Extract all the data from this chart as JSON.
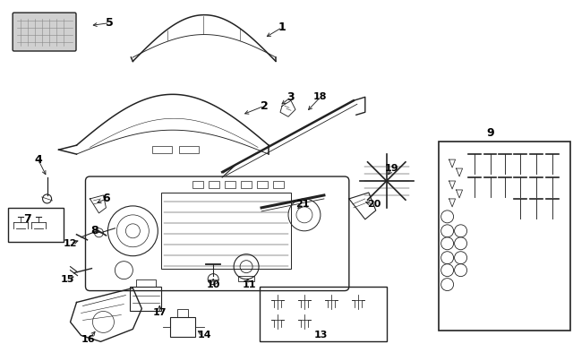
{
  "bg_color": "#ffffff",
  "line_color": "#222222",
  "text_color": "#000000",
  "fig_width": 6.4,
  "fig_height": 4.03,
  "labels": [
    [
      "1",
      315,
      30,
      295,
      42
    ],
    [
      "2",
      295,
      118,
      270,
      128
    ],
    [
      "3",
      325,
      108,
      312,
      118
    ],
    [
      "4",
      42,
      178,
      52,
      198
    ],
    [
      "5",
      122,
      25,
      100,
      28
    ],
    [
      "6",
      118,
      222,
      105,
      228
    ],
    [
      "7",
      30,
      245,
      null,
      null
    ],
    [
      "8",
      105,
      258,
      115,
      260
    ],
    [
      "9",
      548,
      148,
      null,
      null
    ],
    [
      "10",
      238,
      318,
      238,
      308
    ],
    [
      "11",
      278,
      318,
      275,
      308
    ],
    [
      "12",
      78,
      272,
      90,
      268
    ],
    [
      "13",
      358,
      375,
      null,
      null
    ],
    [
      "14",
      228,
      375,
      218,
      368
    ],
    [
      "15",
      75,
      312,
      85,
      308
    ],
    [
      "16",
      98,
      380,
      108,
      368
    ],
    [
      "17",
      178,
      350,
      178,
      338
    ],
    [
      "18",
      358,
      108,
      342,
      125
    ],
    [
      "19",
      438,
      188,
      432,
      198
    ],
    [
      "20",
      418,
      228,
      405,
      225
    ],
    [
      "21",
      338,
      228,
      330,
      235
    ]
  ]
}
